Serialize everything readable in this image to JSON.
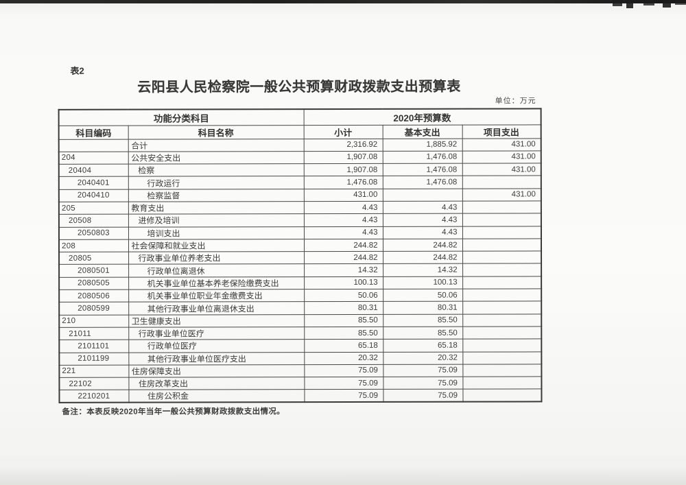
{
  "page": {
    "table_label": "表2",
    "title": "云阳县人民检察院一般公共预算财政拨款支出预算表",
    "unit_note": "单位：万元",
    "footnote": "备注：本表反映2020年当年一般公共预算财政拨款支出情况。"
  },
  "table": {
    "header": {
      "group_function": "功能分类科目",
      "group_budget": "2020年预算数",
      "code": "科目编码",
      "name": "科目名称",
      "subtotal": "小计",
      "basic": "基本支出",
      "project": "项目支出"
    },
    "rows": [
      {
        "code": "",
        "name": "合计",
        "indent": 0,
        "subtotal": "2,316.92",
        "basic": "1,885.92",
        "project": "431.00"
      },
      {
        "code": "204",
        "name": "公共安全支出",
        "indent": 0,
        "subtotal": "1,907.08",
        "basic": "1,476.08",
        "project": "431.00"
      },
      {
        "code": "20404",
        "name": "检察",
        "indent": 1,
        "subtotal": "1,907.08",
        "basic": "1,476.08",
        "project": "431.00"
      },
      {
        "code": "2040401",
        "name": "行政运行",
        "indent": 2,
        "subtotal": "1,476.08",
        "basic": "1,476.08",
        "project": ""
      },
      {
        "code": "2040410",
        "name": "检察监督",
        "indent": 2,
        "subtotal": "431.00",
        "basic": "",
        "project": "431.00"
      },
      {
        "code": "205",
        "name": "教育支出",
        "indent": 0,
        "subtotal": "4.43",
        "basic": "4.43",
        "project": ""
      },
      {
        "code": "20508",
        "name": "进修及培训",
        "indent": 1,
        "subtotal": "4.43",
        "basic": "4.43",
        "project": ""
      },
      {
        "code": "2050803",
        "name": "培训支出",
        "indent": 2,
        "subtotal": "4.43",
        "basic": "4.43",
        "project": ""
      },
      {
        "code": "208",
        "name": "社会保障和就业支出",
        "indent": 0,
        "subtotal": "244.82",
        "basic": "244.82",
        "project": ""
      },
      {
        "code": "20805",
        "name": "行政事业单位养老支出",
        "indent": 1,
        "subtotal": "244.82",
        "basic": "244.82",
        "project": ""
      },
      {
        "code": "2080501",
        "name": "行政单位离退休",
        "indent": 2,
        "subtotal": "14.32",
        "basic": "14.32",
        "project": ""
      },
      {
        "code": "2080505",
        "name": "机关事业单位基本养老保险缴费支出",
        "indent": 2,
        "subtotal": "100.13",
        "basic": "100.13",
        "project": ""
      },
      {
        "code": "2080506",
        "name": "机关事业单位职业年金缴费支出",
        "indent": 2,
        "subtotal": "50.06",
        "basic": "50.06",
        "project": ""
      },
      {
        "code": "2080599",
        "name": "其他行政事业单位离退休支出",
        "indent": 2,
        "subtotal": "80.31",
        "basic": "80.31",
        "project": ""
      },
      {
        "code": "210",
        "name": "卫生健康支出",
        "indent": 0,
        "subtotal": "85.50",
        "basic": "85.50",
        "project": ""
      },
      {
        "code": "21011",
        "name": "行政事业单位医疗",
        "indent": 1,
        "subtotal": "85.50",
        "basic": "85.50",
        "project": ""
      },
      {
        "code": "2101101",
        "name": "行政单位医疗",
        "indent": 2,
        "subtotal": "65.18",
        "basic": "65.18",
        "project": ""
      },
      {
        "code": "2101199",
        "name": "其他行政事业单位医疗支出",
        "indent": 2,
        "subtotal": "20.32",
        "basic": "20.32",
        "project": ""
      },
      {
        "code": "221",
        "name": "住房保障支出",
        "indent": 0,
        "subtotal": "75.09",
        "basic": "75.09",
        "project": ""
      },
      {
        "code": "22102",
        "name": "住房改革支出",
        "indent": 1,
        "subtotal": "75.09",
        "basic": "75.09",
        "project": ""
      },
      {
        "code": "2210201",
        "name": "住房公积金",
        "indent": 2,
        "subtotal": "75.09",
        "basic": "75.09",
        "project": ""
      }
    ]
  }
}
